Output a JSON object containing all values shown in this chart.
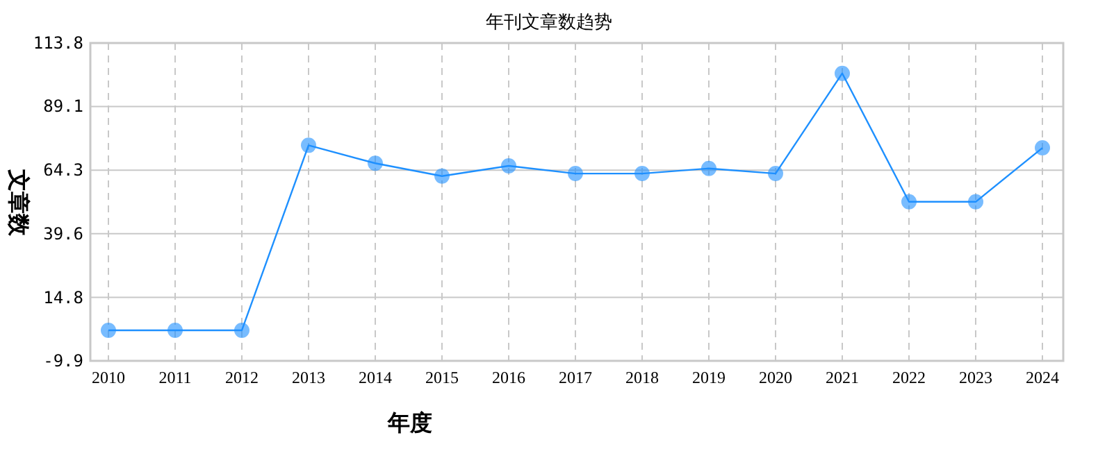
{
  "chart_data": {
    "type": "line",
    "title": "年刊文章数趋势",
    "xlabel": "年度",
    "ylabel": "文章数",
    "categories": [
      "2010",
      "2011",
      "2012",
      "2013",
      "2014",
      "2015",
      "2016",
      "2017",
      "2018",
      "2019",
      "2020",
      "2021",
      "2022",
      "2023",
      "2024"
    ],
    "series": [
      {
        "color": "#1e90ff",
        "values": [
          2,
          2,
          2,
          74,
          67,
          62,
          66,
          63,
          63,
          65,
          63,
          102,
          52,
          52,
          73
        ]
      }
    ],
    "ylim": [
      -9.9,
      113.8
    ],
    "yticks": [
      -9.9,
      14.8,
      39.6,
      64.3,
      89.1,
      113.8
    ],
    "grid": true,
    "marker": "circle",
    "line_style": "solid"
  }
}
